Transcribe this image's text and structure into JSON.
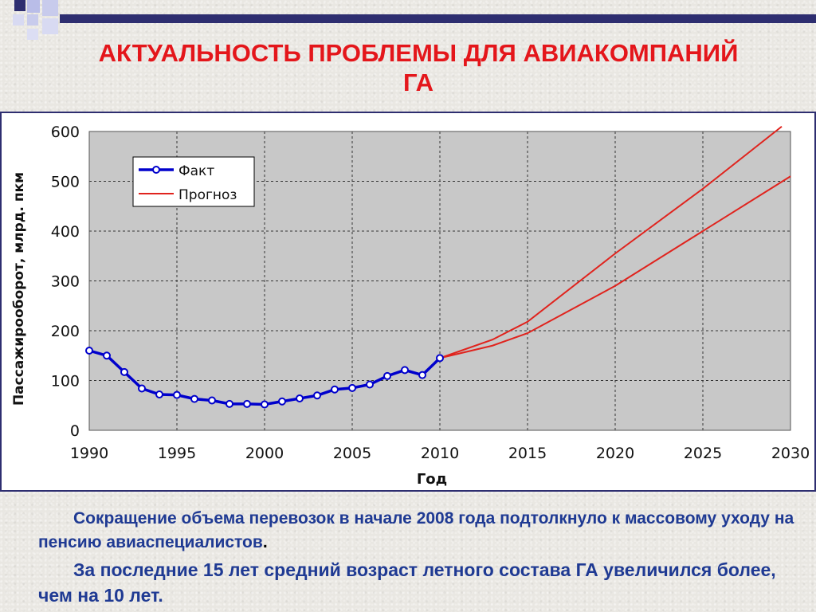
{
  "slide": {
    "title_line1": "АКТУАЛЬНОСТЬ ПРОБЛЕМЫ ДЛЯ АВИАКОМПАНИЙ",
    "title_line2": "ГА",
    "paragraph1": "Сокращение объема перевозок в начале 2008 года подтолкнуло к массовому уходу на пенсию  авиаспециалистов",
    "paragraph1_end": ".",
    "paragraph2": "За последние 15 лет средний возраст летного состава ГА увеличился более, чем на 10 лет."
  },
  "colors": {
    "title": "#e4161b",
    "fact_series": "#0000cc",
    "forecast_series": "#e0231d",
    "text": "#1f3a93",
    "frame": "#2e2e70"
  },
  "chart_data": {
    "type": "line",
    "title": "",
    "xlabel": "Год",
    "ylabel": "Пассажирооборот, млрд. пкм",
    "xlim": [
      1990,
      2030
    ],
    "ylim": [
      0,
      600
    ],
    "x_ticks": [
      "1990",
      "1995",
      "2000",
      "2005",
      "2010",
      "2015",
      "2020",
      "2025",
      "2030"
    ],
    "y_ticks": [
      "0",
      "100",
      "200",
      "300",
      "400",
      "500",
      "600"
    ],
    "grid": true,
    "legend_position": "top-left",
    "series": [
      {
        "name": "Факт",
        "style": "line-markers",
        "x": [
          1990,
          1991,
          1992,
          1993,
          1994,
          1995,
          1996,
          1997,
          1998,
          1999,
          2000,
          2001,
          2002,
          2003,
          2004,
          2005,
          2006,
          2007,
          2008,
          2009,
          2010
        ],
        "y": [
          160,
          150,
          117,
          84,
          72,
          71,
          63,
          60,
          53,
          53,
          52,
          58,
          64,
          70,
          82,
          85,
          92,
          109,
          121,
          111,
          145
        ]
      },
      {
        "name": "Прогноз",
        "style": "line",
        "x": [
          2010,
          2013,
          2015,
          2020,
          2025,
          2030
        ],
        "y": [
          145,
          170,
          195,
          290,
          400,
          510
        ]
      },
      {
        "name": "",
        "style": "line",
        "x": [
          2010,
          2013,
          2015,
          2020,
          2025,
          2029.5
        ],
        "y": [
          145,
          182,
          218,
          355,
          485,
          610
        ]
      }
    ]
  }
}
